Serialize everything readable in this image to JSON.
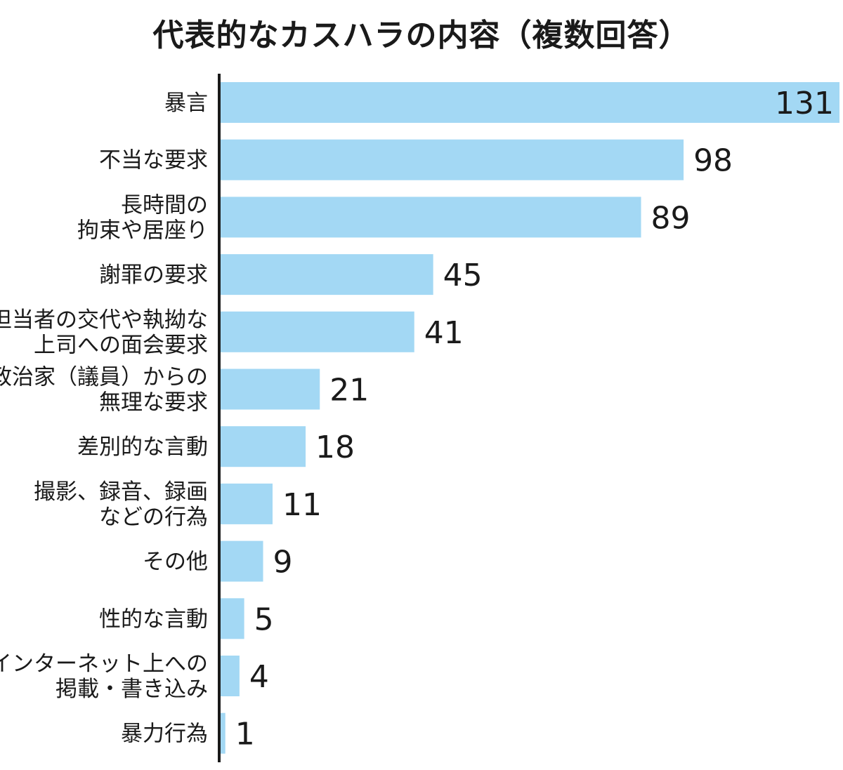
{
  "chart_data": {
    "type": "bar",
    "orientation": "horizontal",
    "title": "代表的なカスハラの内容（複数回答）",
    "categories": [
      [
        "暴言"
      ],
      [
        "不当な要求"
      ],
      [
        "長時間の",
        "拘束や居座り"
      ],
      [
        "謝罪の要求"
      ],
      [
        "担当者の交代や執拗な",
        "上司への面会要求"
      ],
      [
        "政治家（議員）からの",
        "無理な要求"
      ],
      [
        "差別的な言動"
      ],
      [
        "撮影、録音、録画",
        "などの行為"
      ],
      [
        "その他"
      ],
      [
        "性的な言動"
      ],
      [
        "インターネット上への",
        "掲載・書き込み"
      ],
      [
        "暴力行為"
      ]
    ],
    "values": [
      131,
      98,
      89,
      45,
      41,
      21,
      18,
      11,
      9,
      5,
      4,
      1
    ],
    "xlim": [
      0,
      131
    ],
    "grid": false,
    "bar_color": "#a3d8f4",
    "axis_color": "#1a1a1a"
  }
}
